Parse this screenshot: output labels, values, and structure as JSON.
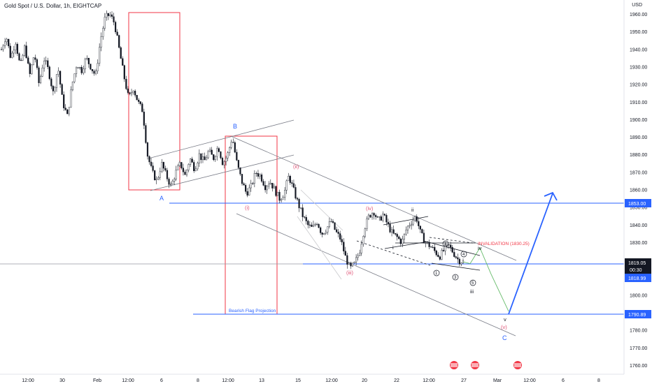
{
  "header": {
    "title": "Gold Spot / U.S. Dollar, 1h, EIGHTCAP",
    "currency": "USD"
  },
  "chart_data": {
    "type": "candlestick",
    "title": "Gold Spot / U.S. Dollar, 1h, EIGHTCAP",
    "ylabel": "USD",
    "ylim": [
      1755,
      1965
    ],
    "y_ticks": [
      1960,
      1950,
      1940,
      1930,
      1920,
      1910,
      1900,
      1890,
      1880,
      1870,
      1860,
      1850,
      1840,
      1830,
      1820,
      1810,
      1800,
      1790,
      1780,
      1770,
      1760
    ],
    "y_tick_labels": [
      "1960.00",
      "1950.00",
      "1940.00",
      "1930.00",
      "1920.00",
      "1910.00",
      "1900.00",
      "1890.00",
      "1880.00",
      "1870.00",
      "1860.00",
      "1850.00",
      "1840.00",
      "1830.00",
      "1820.00",
      "1810.00",
      "1800.00",
      "1790.00",
      "1780.00",
      "1770.00",
      "1760.00"
    ],
    "x_tick_labels": [
      "12:00",
      "30",
      "Feb",
      "12:00",
      "6",
      "8",
      "12:00",
      "13",
      "15",
      "12:00",
      "20",
      "22",
      "12:00",
      "27",
      "Mar",
      "12:00",
      "6",
      "8"
    ],
    "price_path": [
      1940,
      1948,
      1935,
      1945,
      1930,
      1942,
      1925,
      1938,
      1920,
      1935,
      1928,
      1915,
      1930,
      1910,
      1902,
      1920,
      1932,
      1928,
      1935,
      1930,
      1925,
      1945,
      1958,
      1960,
      1955,
      1940,
      1925,
      1912,
      1918,
      1910,
      1905,
      1880,
      1870,
      1865,
      1875,
      1868,
      1862,
      1870,
      1875,
      1868,
      1878,
      1872,
      1880,
      1876,
      1882,
      1878,
      1885,
      1875,
      1880,
      1890,
      1875,
      1865,
      1858,
      1862,
      1870,
      1868,
      1862,
      1865,
      1860,
      1855,
      1858,
      1868,
      1860,
      1852,
      1845,
      1840,
      1838,
      1842,
      1835,
      1838,
      1842,
      1836,
      1832,
      1822,
      1815,
      1818,
      1825,
      1838,
      1845,
      1848,
      1842,
      1846,
      1840,
      1835,
      1833,
      1830,
      1838,
      1842,
      1845,
      1835,
      1830,
      1828,
      1825,
      1822,
      1826,
      1828,
      1824,
      1820,
      1819
    ],
    "projection_path": [
      1819,
      1818,
      1827,
      1812,
      1790.89
    ],
    "projection_target": 1853,
    "lines": {
      "a_level": 1853.0,
      "current": 1819.05,
      "projection": 1790.89,
      "invalidation": 1830.25
    },
    "price_badges": {
      "a_level": "1853.00",
      "current": "1819.05",
      "countdown": "00:30",
      "bid": "1818.99",
      "projection": "1790.89"
    },
    "annotations": {
      "invalidation": "INVALIDATION (1830.25)",
      "bearish_flag": "Bearish Flag Projection",
      "wave_A": "A",
      "wave_B": "B",
      "wave_C": "C",
      "wave_i_paren": "(i)",
      "wave_ii_paren": "(ii)",
      "wave_iii_paren": "(iii)",
      "wave_iv_paren": "(iv)",
      "wave_v_paren": "(v)",
      "wave_i": "i",
      "wave_ii": "ii",
      "wave_iii": "iii",
      "wave_iv": "iv",
      "wave_v": "v",
      "sub_1": "1",
      "sub_2": "2",
      "sub_3": "3",
      "sub_4": "4",
      "sub_5": "5"
    },
    "colors": {
      "candle": "#131722",
      "level_line": "#2962ff",
      "invalidation": "#f23645",
      "box": "#f23645",
      "wave_red": "#e05577",
      "wave_blue": "#2962ff",
      "projection": "#66bb6a",
      "channel": "#787b86"
    }
  }
}
